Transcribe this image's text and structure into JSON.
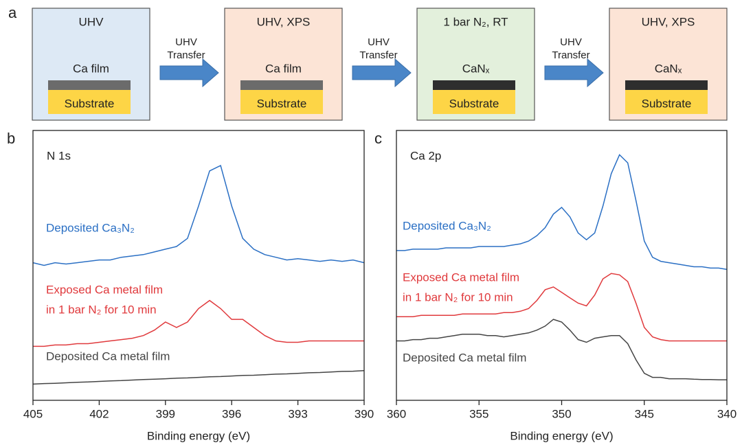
{
  "panel_a": {
    "label": "a",
    "steps": [
      {
        "header": "UHV",
        "film": "Ca film",
        "substrate": "Substrate",
        "fill": "#dde9f5",
        "film_color": "#6b6b6b"
      },
      {
        "header": "UHV, XPS",
        "film": "Ca film",
        "substrate": "Substrate",
        "fill": "#fce4d6",
        "film_color": "#6b6b6b"
      },
      {
        "header": "1 bar N₂, RT",
        "film": "CaNₓ",
        "substrate": "Substrate",
        "fill": "#e3f0dc",
        "film_color": "#2e2e2e"
      },
      {
        "header": "UHV, XPS",
        "film": "CaNₓ",
        "substrate": "Substrate",
        "fill": "#fce4d6",
        "film_color": "#2e2e2e"
      }
    ],
    "arrows": [
      [
        "UHV",
        "Transfer"
      ],
      [
        "UHV",
        "Transfer"
      ],
      [
        "UHV",
        "Transfer"
      ]
    ]
  },
  "chart_data": [
    {
      "type": "line",
      "panel": "b",
      "title": "N 1s",
      "xlabel": "Binding energy (eV)",
      "xlim": [
        405,
        390
      ],
      "xticks": [
        405,
        402,
        399,
        396,
        393,
        390
      ],
      "ylim": [
        0,
        100
      ],
      "x": [
        405,
        404.5,
        404,
        403.5,
        403,
        402.5,
        402,
        401.5,
        401,
        400.5,
        400,
        399.5,
        399,
        398.5,
        398,
        397.5,
        397,
        396.5,
        396,
        395.5,
        395,
        394.5,
        394,
        393.5,
        393,
        392.5,
        392,
        391.5,
        391,
        390.5,
        390
      ],
      "series": [
        {
          "name": [
            "Deposited Ca₃N₂"
          ],
          "color": "#2a6fc4",
          "values": [
            51,
            50,
            51,
            50.5,
            51,
            51.5,
            52,
            52,
            53,
            53.5,
            54,
            55,
            56,
            57,
            60,
            72,
            85,
            87,
            72,
            60,
            56,
            54,
            53,
            52,
            52.5,
            52,
            51.5,
            52,
            51.5,
            52,
            51
          ]
        },
        {
          "name": [
            "Exposed Ca metal film",
            "in 1 bar N₂ for 10 min"
          ],
          "color": "#e0393c",
          "values": [
            20,
            20,
            20.5,
            20.5,
            21,
            21,
            21.5,
            22,
            22.5,
            23,
            24,
            26,
            29,
            27,
            29,
            34,
            37,
            34,
            30,
            30,
            27,
            24,
            22,
            21.5,
            21.5,
            22,
            22,
            22,
            22,
            22,
            22
          ]
        },
        {
          "name": [
            "Deposited Ca metal film"
          ],
          "color": "#444444",
          "values": [
            6,
            6.2,
            6.3,
            6.5,
            6.7,
            6.8,
            7,
            7.2,
            7.3,
            7.5,
            7.7,
            7.8,
            8,
            8.2,
            8.3,
            8.5,
            8.7,
            8.8,
            9,
            9.2,
            9.3,
            9.5,
            9.7,
            9.8,
            10,
            10.2,
            10.3,
            10.5,
            10.7,
            10.8,
            11
          ]
        }
      ]
    },
    {
      "type": "line",
      "panel": "c",
      "title": "Ca 2p",
      "xlabel": "Binding energy (eV)",
      "xlim": [
        360,
        340
      ],
      "xticks": [
        360,
        355,
        350,
        345,
        340
      ],
      "ylim": [
        0,
        100
      ],
      "x": [
        360,
        359.5,
        359,
        358.5,
        358,
        357.5,
        357,
        356.5,
        356,
        355.5,
        355,
        354.5,
        354,
        353.5,
        353,
        352.5,
        352,
        351.5,
        351,
        350.5,
        350,
        349.5,
        349,
        348.5,
        348,
        347.5,
        347,
        346.5,
        346,
        345.5,
        345,
        344.5,
        344,
        343.5,
        343,
        342.5,
        342,
        341.5,
        341,
        340.5,
        340
      ],
      "series": [
        {
          "name": [
            "Deposited Ca₃N₂"
          ],
          "color": "#2a6fc4",
          "values": [
            55.5,
            55.5,
            56,
            56,
            56,
            56,
            56.5,
            56.5,
            56.5,
            56.5,
            57,
            57,
            57,
            57,
            57.5,
            58,
            59,
            61,
            64,
            69,
            71.5,
            68,
            62,
            59.5,
            62,
            72,
            84,
            91,
            88,
            74,
            59,
            53,
            51.5,
            51,
            50.5,
            50,
            49.5,
            49.5,
            49,
            49,
            48.5
          ]
        },
        {
          "name": [
            "Exposed Ca metal film",
            "in 1 bar N₂ for 10 min"
          ],
          "color": "#e0393c",
          "values": [
            31,
            31,
            31,
            31.5,
            31.5,
            31.5,
            31.5,
            31.5,
            32,
            32,
            32,
            32,
            32,
            32.5,
            32.5,
            33,
            34,
            37,
            41,
            42,
            40,
            38,
            36,
            35,
            39,
            45,
            47,
            46.5,
            44,
            36,
            27,
            23.5,
            22.5,
            22,
            22,
            22,
            22,
            22,
            22,
            22,
            22
          ]
        },
        {
          "name": [
            "Deposited Ca metal film"
          ],
          "color": "#444444",
          "values": [
            22,
            22,
            22.5,
            22.5,
            23,
            23,
            23.5,
            24,
            24.5,
            24.5,
            24.5,
            24,
            24,
            23.5,
            24,
            24.5,
            25,
            26,
            27.5,
            30,
            29,
            26,
            22.5,
            21.5,
            23,
            23.5,
            24,
            24,
            21,
            15,
            10,
            8.5,
            8.5,
            8,
            8,
            8,
            7.8,
            7.7,
            7.7,
            7.6,
            7.6
          ]
        }
      ]
    }
  ]
}
